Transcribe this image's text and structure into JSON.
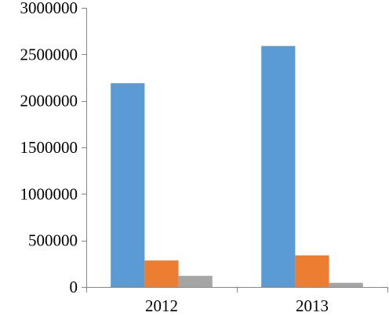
{
  "chart_data": {
    "type": "bar",
    "title": "",
    "xlabel": "",
    "ylabel": "",
    "categories": [
      "2012",
      "2013"
    ],
    "ylim": [
      0,
      3000000
    ],
    "yticks": [
      0,
      500000,
      1000000,
      1500000,
      2000000,
      2500000,
      3000000
    ],
    "ytick_labels": [
      "0",
      "500000",
      "1000000",
      "1500000",
      "2000000",
      "2500000",
      "3000000"
    ],
    "grid": false,
    "legend": "none",
    "series": [
      {
        "values": [
          2190000,
          2590000
        ],
        "color": "#5B9BD5"
      },
      {
        "values": [
          285000,
          340000
        ],
        "color": "#ED7D31"
      },
      {
        "values": [
          120000,
          45000
        ],
        "color": "#A5A5A5"
      }
    ]
  }
}
